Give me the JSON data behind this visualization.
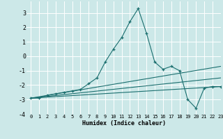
{
  "title": "",
  "xlabel": "Humidex (Indice chaleur)",
  "ylabel": "",
  "background_color": "#cce8e8",
  "grid_color": "#ffffff",
  "line_color": "#1a6e6e",
  "xlim": [
    -0.5,
    23
  ],
  "ylim": [
    -4,
    3.8
  ],
  "xticks": [
    0,
    1,
    2,
    3,
    4,
    5,
    6,
    7,
    8,
    9,
    10,
    11,
    12,
    13,
    14,
    15,
    16,
    17,
    18,
    19,
    20,
    21,
    22,
    23
  ],
  "yticks": [
    -4,
    -3,
    -2,
    -1,
    0,
    1,
    2,
    3
  ],
  "series1_x": [
    0,
    1,
    2,
    3,
    4,
    5,
    6,
    7,
    8,
    9,
    10,
    11,
    12,
    13,
    14,
    15,
    16,
    17,
    18,
    19,
    20,
    21,
    22,
    23
  ],
  "series1_y": [
    -2.9,
    -2.9,
    -2.7,
    -2.6,
    -2.5,
    -2.4,
    -2.3,
    -1.9,
    -1.5,
    -0.4,
    0.5,
    1.3,
    2.4,
    3.3,
    1.6,
    -0.4,
    -0.9,
    -0.7,
    -1.0,
    -3.0,
    -3.6,
    -2.2,
    -2.1,
    -2.1
  ],
  "series2_x": [
    0,
    23
  ],
  "series2_y": [
    -2.9,
    -0.7
  ],
  "series3_x": [
    0,
    23
  ],
  "series3_y": [
    -2.9,
    -1.5
  ],
  "series4_x": [
    0,
    23
  ],
  "series4_y": [
    -2.9,
    -2.1
  ]
}
